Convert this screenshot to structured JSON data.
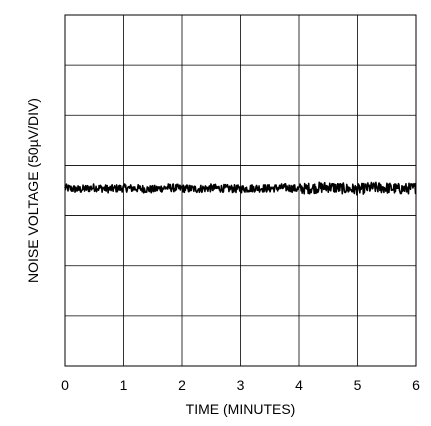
{
  "chart_data": {
    "type": "line",
    "title": "",
    "xlabel": "TIME (MINUTES)",
    "ylabel": "NOISE VOLTAGE (50µV/DIV)",
    "xlim": [
      0,
      6
    ],
    "x_ticks": [
      "0",
      "1",
      "2",
      "3",
      "4",
      "5",
      "6"
    ],
    "y_divisions": 7,
    "y_units_per_div": 50,
    "ylim_divisions": [
      0,
      7
    ],
    "grid": true,
    "legend": "none",
    "line_color": "#000000",
    "series": [
      {
        "x": [
          0.0,
          0.25,
          0.5,
          0.75,
          1.0,
          1.25,
          1.5,
          1.75,
          2.0,
          2.25,
          2.5,
          2.75,
          3.0,
          3.25,
          3.5,
          3.75,
          4.0,
          4.25,
          4.5,
          4.75,
          5.0,
          5.25,
          5.5,
          5.75,
          6.0
        ],
        "y_div": [
          3.55,
          3.52,
          3.56,
          3.53,
          3.55,
          3.54,
          3.52,
          3.56,
          3.54,
          3.53,
          3.55,
          3.54,
          3.53,
          3.55,
          3.54,
          3.56,
          3.53,
          3.55,
          3.57,
          3.54,
          3.52,
          3.56,
          3.55,
          3.53,
          3.55
        ]
      }
    ]
  }
}
